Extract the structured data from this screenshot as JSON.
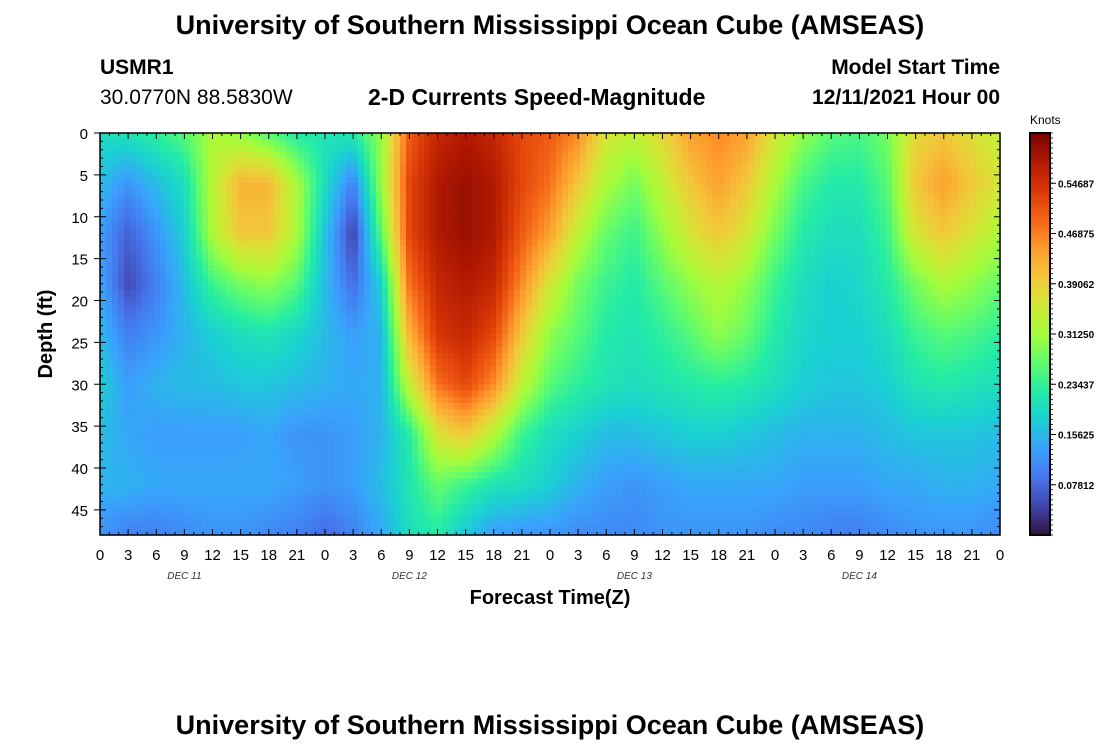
{
  "header": {
    "title": "University of Southern Mississippi Ocean Cube (AMSEAS)",
    "station": "USMR1",
    "coords": "30.0770N  88.5830W",
    "plot_title": "2-D Currents Speed-Magnitude",
    "model_start_label": "Model Start Time",
    "model_start_value": "12/11/2021 Hour 00"
  },
  "footer": {
    "title": "University of Southern Mississippi Ocean Cube (AMSEAS)"
  },
  "chart_data": {
    "type": "heatmap",
    "xlabel": "Forecast Time(Z)",
    "ylabel": "Depth (ft)",
    "x_hours_range": [
      0,
      96
    ],
    "x_tick_step_hours": 3,
    "x_tick_labels": [
      "0",
      "3",
      "6",
      "9",
      "12",
      "15",
      "18",
      "21",
      "0",
      "3",
      "6",
      "9",
      "12",
      "15",
      "18",
      "21",
      "0",
      "3",
      "6",
      "9",
      "12",
      "15",
      "18",
      "21",
      "0",
      "3",
      "6",
      "9",
      "12",
      "15",
      "18",
      "21",
      "0"
    ],
    "day_labels": [
      "DEC 11",
      "DEC 12",
      "DEC 13",
      "DEC 14"
    ],
    "ylim": [
      0,
      48
    ],
    "y_ticks": [
      0,
      5,
      10,
      15,
      20,
      25,
      30,
      35,
      40,
      45
    ],
    "colorbar": {
      "label": "Knots",
      "range": [
        0,
        0.625
      ],
      "tick_labels": [
        "0.54687",
        "0.46875",
        "0.39062",
        "0.31250",
        "0.23437",
        "0.15625",
        "0.07812"
      ],
      "tick_values": [
        0.54687,
        0.46875,
        0.39062,
        0.3125,
        0.23437,
        0.15625,
        0.07812
      ],
      "colors": [
        "#30123b",
        "#4145ab",
        "#4675ed",
        "#39a2fc",
        "#1bcfd4",
        "#24eca6",
        "#61fc6c",
        "#a4fc3b",
        "#d1e834",
        "#f3c63a",
        "#fe9b2d",
        "#f36315",
        "#d93806",
        "#b11901",
        "#7a0403"
      ]
    },
    "x_knots_hours": [
      0,
      3,
      6,
      9,
      12,
      15,
      18,
      21,
      24,
      27,
      30,
      33,
      36,
      39,
      42,
      45,
      48,
      51,
      54,
      57,
      60,
      63,
      66,
      69,
      72,
      75,
      78,
      81,
      84,
      87,
      90,
      93,
      96
    ],
    "depth_knots_ft": [
      0,
      6,
      12,
      18,
      24,
      30,
      36,
      42,
      48
    ],
    "speed_knots": [
      [
        0.2,
        0.21,
        0.23,
        0.26,
        0.32,
        0.3,
        0.26,
        0.22,
        0.21,
        0.22,
        0.3,
        0.5,
        0.56,
        0.58,
        0.56,
        0.52,
        0.5,
        0.46,
        0.36,
        0.34,
        0.38,
        0.44,
        0.46,
        0.44,
        0.36,
        0.3,
        0.26,
        0.25,
        0.28,
        0.38,
        0.4,
        0.37,
        0.34
      ],
      [
        0.16,
        0.12,
        0.16,
        0.2,
        0.33,
        0.42,
        0.42,
        0.32,
        0.2,
        0.1,
        0.3,
        0.52,
        0.58,
        0.6,
        0.58,
        0.52,
        0.48,
        0.4,
        0.32,
        0.28,
        0.34,
        0.4,
        0.44,
        0.4,
        0.32,
        0.25,
        0.22,
        0.22,
        0.26,
        0.4,
        0.44,
        0.4,
        0.36
      ],
      [
        0.13,
        0.07,
        0.12,
        0.18,
        0.32,
        0.4,
        0.4,
        0.32,
        0.17,
        0.04,
        0.26,
        0.52,
        0.58,
        0.6,
        0.58,
        0.5,
        0.44,
        0.34,
        0.27,
        0.24,
        0.3,
        0.36,
        0.4,
        0.36,
        0.28,
        0.22,
        0.2,
        0.2,
        0.24,
        0.36,
        0.4,
        0.36,
        0.32
      ],
      [
        0.14,
        0.05,
        0.1,
        0.16,
        0.24,
        0.28,
        0.3,
        0.26,
        0.16,
        0.08,
        0.18,
        0.48,
        0.56,
        0.58,
        0.56,
        0.46,
        0.36,
        0.28,
        0.24,
        0.22,
        0.26,
        0.3,
        0.33,
        0.3,
        0.24,
        0.2,
        0.18,
        0.19,
        0.22,
        0.28,
        0.32,
        0.3,
        0.27
      ],
      [
        0.16,
        0.1,
        0.12,
        0.15,
        0.18,
        0.2,
        0.21,
        0.19,
        0.16,
        0.13,
        0.15,
        0.42,
        0.54,
        0.56,
        0.52,
        0.4,
        0.3,
        0.26,
        0.22,
        0.21,
        0.23,
        0.26,
        0.3,
        0.27,
        0.22,
        0.19,
        0.18,
        0.18,
        0.2,
        0.24,
        0.26,
        0.25,
        0.23
      ],
      [
        0.18,
        0.13,
        0.15,
        0.16,
        0.16,
        0.17,
        0.17,
        0.16,
        0.15,
        0.14,
        0.15,
        0.34,
        0.48,
        0.52,
        0.46,
        0.34,
        0.26,
        0.23,
        0.21,
        0.2,
        0.21,
        0.22,
        0.23,
        0.22,
        0.2,
        0.18,
        0.17,
        0.17,
        0.18,
        0.21,
        0.22,
        0.21,
        0.2
      ],
      [
        0.16,
        0.14,
        0.13,
        0.13,
        0.13,
        0.13,
        0.14,
        0.12,
        0.12,
        0.13,
        0.15,
        0.22,
        0.36,
        0.4,
        0.33,
        0.24,
        0.2,
        0.18,
        0.16,
        0.16,
        0.17,
        0.18,
        0.18,
        0.17,
        0.16,
        0.15,
        0.15,
        0.15,
        0.16,
        0.17,
        0.17,
        0.17,
        0.16
      ],
      [
        0.15,
        0.15,
        0.14,
        0.14,
        0.14,
        0.14,
        0.14,
        0.13,
        0.12,
        0.13,
        0.16,
        0.21,
        0.27,
        0.24,
        0.21,
        0.2,
        0.18,
        0.15,
        0.13,
        0.12,
        0.13,
        0.14,
        0.14,
        0.14,
        0.14,
        0.13,
        0.13,
        0.13,
        0.14,
        0.14,
        0.15,
        0.15,
        0.14
      ],
      [
        0.12,
        0.1,
        0.1,
        0.11,
        0.12,
        0.12,
        0.11,
        0.1,
        0.08,
        0.1,
        0.14,
        0.2,
        0.22,
        0.17,
        0.13,
        0.12,
        0.12,
        0.11,
        0.11,
        0.11,
        0.12,
        0.12,
        0.12,
        0.12,
        0.11,
        0.11,
        0.1,
        0.1,
        0.11,
        0.12,
        0.12,
        0.12,
        0.11
      ]
    ]
  }
}
